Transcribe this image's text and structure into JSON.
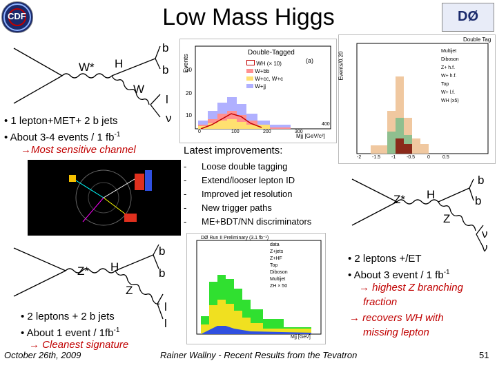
{
  "title": "Low Mass Higgs",
  "logos": {
    "left": "CDF",
    "right": "DØ"
  },
  "diagram_wh": {
    "w_star": "W*",
    "h": "H",
    "b1": "b",
    "b2": "b",
    "w": "W",
    "l": "l",
    "nu": "ν"
  },
  "wh_bullets": {
    "line1": "• 1 lepton+MET+ 2 b jets",
    "line2": "• About 3-4 events / 1 fb",
    "line2_sup": "-1",
    "line3": "→Most sensitive channel"
  },
  "cdf_plot": {
    "legend_title": "Double-Tagged",
    "legend": [
      "WH (× 10)",
      "W+bb",
      "W+cc, W+c",
      "W+jj"
    ],
    "panel_tag": "(a)",
    "ylabel": "Events",
    "xlabel": "Mjj [GeV/c²]",
    "yticks": [
      "10",
      "20",
      "30"
    ],
    "xticks": [
      "0",
      "100",
      "200",
      "300",
      "400"
    ]
  },
  "d0_plot": {
    "title": "Double Tag",
    "ylabel": "Events/0.20",
    "legend": [
      "Multijet",
      "Diboson",
      "Z+ h.f.",
      "W+ h.f.",
      "Top",
      "W+ l.f.",
      "WH (x5)"
    ],
    "xticks": [
      "-2",
      "-1.5",
      "-1",
      "-0.5",
      "0",
      "0.5"
    ]
  },
  "improvements": {
    "heading": "Latest improvements:",
    "items": [
      "Loose double tagging",
      "Extend/looser lepton ID",
      "Improved jet resolution",
      "New trigger paths",
      "ME+BDT/NN discriminators"
    ],
    "dash": "-"
  },
  "diagram_zh": {
    "z_star": "Z*",
    "h": "H",
    "b1": "b",
    "b2": "b",
    "z": "Z",
    "l1": "l",
    "l2": "l"
  },
  "zh_bullets": {
    "line1": "• 2 leptons + 2 b jets",
    "line2": "• About 1 event / 1fb",
    "line2_sup": "-1",
    "line3": "→ Cleanest signature"
  },
  "zh_plot": {
    "title": "DØ Run II Preliminary (3.1 fb⁻¹)",
    "legend": [
      "data",
      "Z+jets",
      "Z+HF",
      "Top",
      "Diboson",
      "Multijet",
      "ZH × 50"
    ],
    "xlabel": "Mjj [GeV]"
  },
  "diagram_znn": {
    "z_star": "Z*",
    "h": "H",
    "b1": "b",
    "b2": "b",
    "z": "Z",
    "nu1": "ν",
    "nu2": "ν"
  },
  "znn_bullets": {
    "line1": "• 2 leptons +/ET",
    "line2": "• About 3 event / 1 fb",
    "line2_sup": "-1",
    "line3": "→ highest Z branching",
    "line4": "fraction",
    "line5": "→ recovers WH with",
    "line6": "missing lepton"
  },
  "footer": {
    "date": "October 26th, 2009",
    "center": "Rainer Wallny - Recent Results from the Tevatron",
    "page": "51"
  },
  "colors": {
    "accent_red": "#c00000",
    "navy": "#1a2a6c"
  }
}
